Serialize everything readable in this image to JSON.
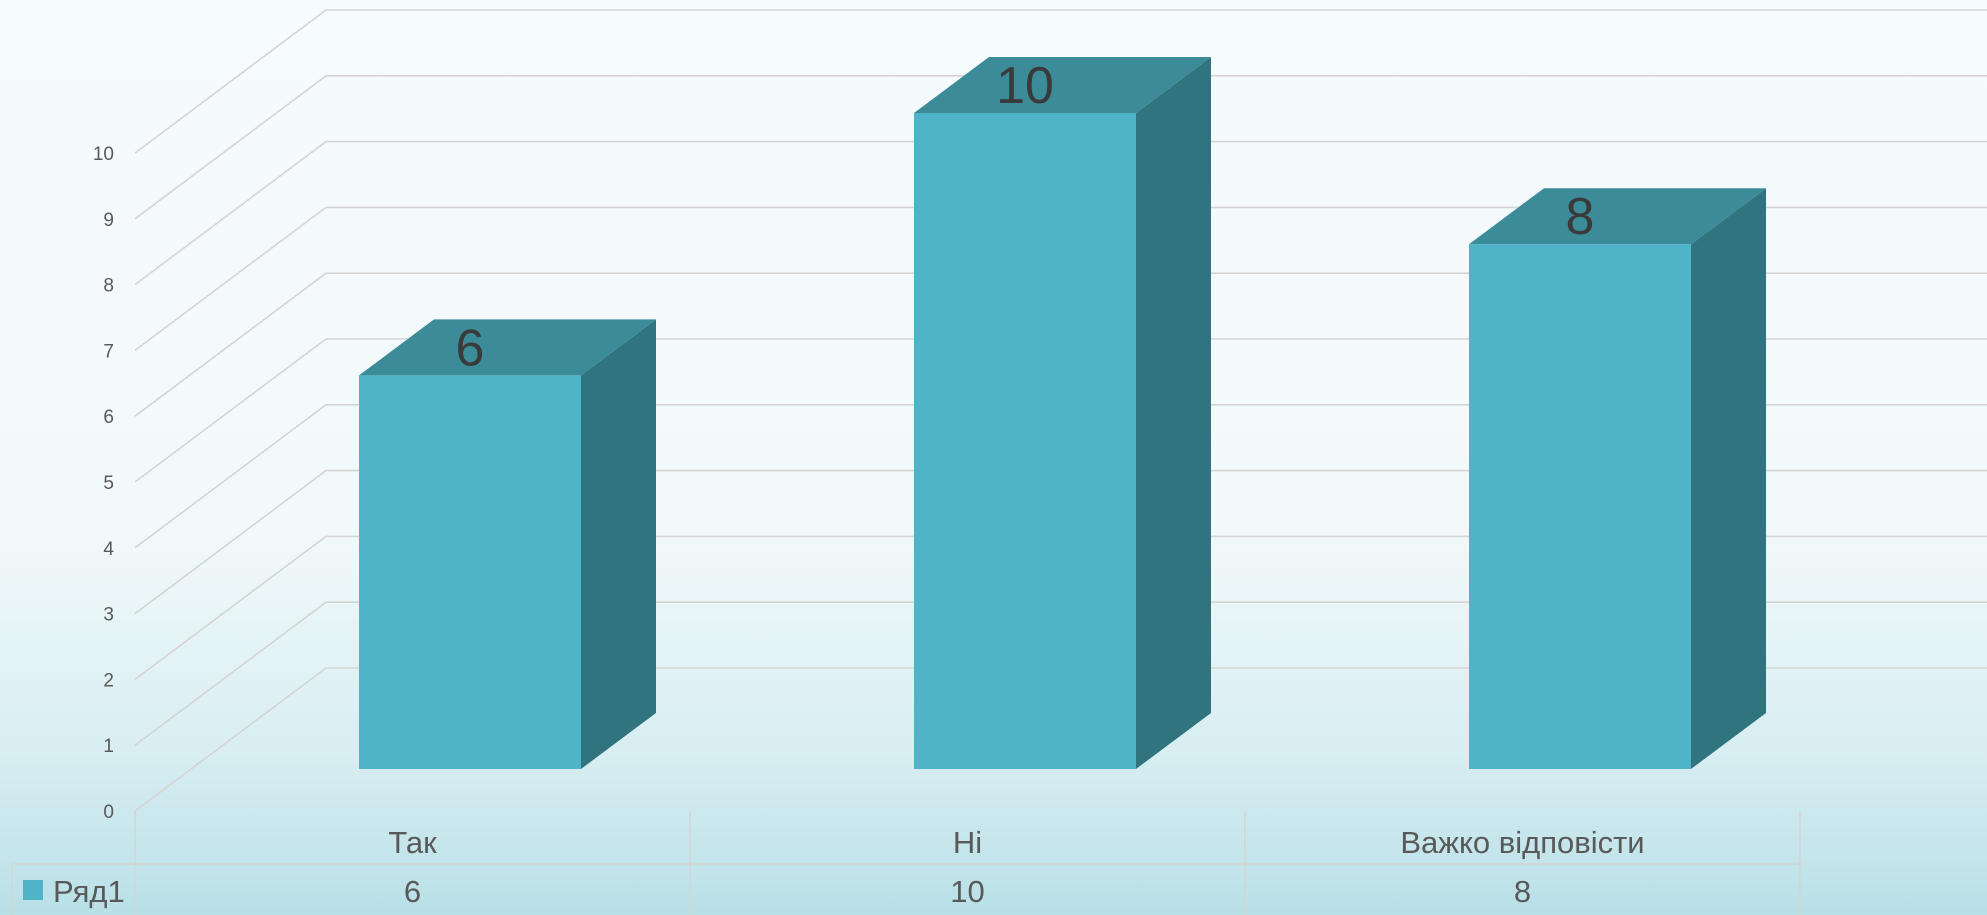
{
  "chart_data": {
    "type": "bar",
    "style": "3d-column-with-data-table",
    "categories": [
      "Так",
      "Ні",
      "Важко відповісти"
    ],
    "series": [
      {
        "name": "Ряд1",
        "values": [
          6,
          10,
          8
        ]
      }
    ],
    "data_labels": [
      "6",
      "10",
      "8"
    ],
    "y_ticks": [
      "0",
      "1",
      "2",
      "3",
      "4",
      "5",
      "6",
      "7",
      "8",
      "9",
      "10"
    ],
    "ylim": [
      0,
      10
    ],
    "grid": true,
    "legend": "data-table-left",
    "title": "",
    "xlabel": "",
    "ylabel": ""
  },
  "colors": {
    "bar_front": "#4fb4c8",
    "bar_top": "#3b8b99",
    "bar_side": "#307480",
    "gridline": "#d4d4d4",
    "legend_key": "#4fb4c8"
  }
}
